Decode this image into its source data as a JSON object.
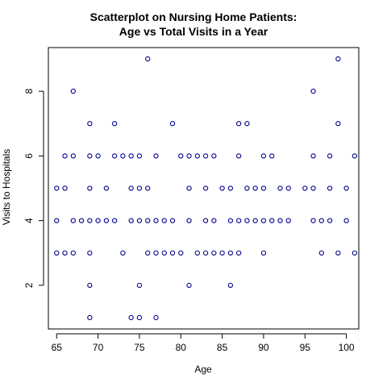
{
  "chart_data": {
    "type": "scatter",
    "title": "Scatterplot on Nursing Home Patients:",
    "subtitle": "Age vs Total Visits in a Year",
    "xlabel": "Age",
    "ylabel": "Visits to Hospitals",
    "xlim": [
      64,
      101.5
    ],
    "ylim": [
      0.65,
      9.35
    ],
    "xticks": [
      65,
      70,
      75,
      80,
      85,
      90,
      95,
      100
    ],
    "yticks": [
      2,
      4,
      6,
      8
    ],
    "grid": false,
    "marker_color": "#00008b",
    "axis_color": "#000000",
    "points": [
      {
        "x": 65,
        "y": 5
      },
      {
        "x": 65,
        "y": 4
      },
      {
        "x": 65,
        "y": 3
      },
      {
        "x": 66,
        "y": 6
      },
      {
        "x": 66,
        "y": 5
      },
      {
        "x": 66,
        "y": 3
      },
      {
        "x": 67,
        "y": 8
      },
      {
        "x": 67,
        "y": 6
      },
      {
        "x": 67,
        "y": 4
      },
      {
        "x": 67,
        "y": 3
      },
      {
        "x": 68,
        "y": 4
      },
      {
        "x": 69,
        "y": 7
      },
      {
        "x": 69,
        "y": 6
      },
      {
        "x": 69,
        "y": 5
      },
      {
        "x": 69,
        "y": 4
      },
      {
        "x": 69,
        "y": 3
      },
      {
        "x": 69,
        "y": 2
      },
      {
        "x": 69,
        "y": 1
      },
      {
        "x": 70,
        "y": 6
      },
      {
        "x": 70,
        "y": 4
      },
      {
        "x": 71,
        "y": 5
      },
      {
        "x": 71,
        "y": 4
      },
      {
        "x": 72,
        "y": 7
      },
      {
        "x": 72,
        "y": 6
      },
      {
        "x": 72,
        "y": 4
      },
      {
        "x": 73,
        "y": 6
      },
      {
        "x": 73,
        "y": 3
      },
      {
        "x": 74,
        "y": 6
      },
      {
        "x": 74,
        "y": 5
      },
      {
        "x": 74,
        "y": 4
      },
      {
        "x": 74,
        "y": 1
      },
      {
        "x": 75,
        "y": 6
      },
      {
        "x": 75,
        "y": 5
      },
      {
        "x": 75,
        "y": 4
      },
      {
        "x": 75,
        "y": 2
      },
      {
        "x": 75,
        "y": 1
      },
      {
        "x": 76,
        "y": 9
      },
      {
        "x": 76,
        "y": 5
      },
      {
        "x": 76,
        "y": 4
      },
      {
        "x": 76,
        "y": 3
      },
      {
        "x": 77,
        "y": 6
      },
      {
        "x": 77,
        "y": 4
      },
      {
        "x": 77,
        "y": 3
      },
      {
        "x": 77,
        "y": 1
      },
      {
        "x": 78,
        "y": 4
      },
      {
        "x": 78,
        "y": 3
      },
      {
        "x": 79,
        "y": 7
      },
      {
        "x": 79,
        "y": 4
      },
      {
        "x": 79,
        "y": 3
      },
      {
        "x": 80,
        "y": 6
      },
      {
        "x": 80,
        "y": 3
      },
      {
        "x": 81,
        "y": 6
      },
      {
        "x": 81,
        "y": 5
      },
      {
        "x": 81,
        "y": 4
      },
      {
        "x": 81,
        "y": 2
      },
      {
        "x": 82,
        "y": 6
      },
      {
        "x": 82,
        "y": 3
      },
      {
        "x": 83,
        "y": 6
      },
      {
        "x": 83,
        "y": 5
      },
      {
        "x": 83,
        "y": 4
      },
      {
        "x": 83,
        "y": 3
      },
      {
        "x": 84,
        "y": 6
      },
      {
        "x": 84,
        "y": 4
      },
      {
        "x": 84,
        "y": 3
      },
      {
        "x": 85,
        "y": 5
      },
      {
        "x": 85,
        "y": 3
      },
      {
        "x": 86,
        "y": 5
      },
      {
        "x": 86,
        "y": 4
      },
      {
        "x": 86,
        "y": 3
      },
      {
        "x": 86,
        "y": 2
      },
      {
        "x": 87,
        "y": 7
      },
      {
        "x": 87,
        "y": 6
      },
      {
        "x": 87,
        "y": 4
      },
      {
        "x": 87,
        "y": 3
      },
      {
        "x": 88,
        "y": 7
      },
      {
        "x": 88,
        "y": 5
      },
      {
        "x": 88,
        "y": 4
      },
      {
        "x": 89,
        "y": 5
      },
      {
        "x": 89,
        "y": 4
      },
      {
        "x": 90,
        "y": 6
      },
      {
        "x": 90,
        "y": 5
      },
      {
        "x": 90,
        "y": 4
      },
      {
        "x": 90,
        "y": 3
      },
      {
        "x": 91,
        "y": 6
      },
      {
        "x": 91,
        "y": 4
      },
      {
        "x": 92,
        "y": 5
      },
      {
        "x": 92,
        "y": 4
      },
      {
        "x": 93,
        "y": 5
      },
      {
        "x": 93,
        "y": 4
      },
      {
        "x": 95,
        "y": 5
      },
      {
        "x": 96,
        "y": 8
      },
      {
        "x": 96,
        "y": 6
      },
      {
        "x": 96,
        "y": 5
      },
      {
        "x": 96,
        "y": 4
      },
      {
        "x": 97,
        "y": 4
      },
      {
        "x": 97,
        "y": 3
      },
      {
        "x": 98,
        "y": 6
      },
      {
        "x": 98,
        "y": 5
      },
      {
        "x": 98,
        "y": 4
      },
      {
        "x": 99,
        "y": 9
      },
      {
        "x": 99,
        "y": 7
      },
      {
        "x": 99,
        "y": 3
      },
      {
        "x": 100,
        "y": 5
      },
      {
        "x": 100,
        "y": 4
      },
      {
        "x": 101,
        "y": 6
      },
      {
        "x": 101,
        "y": 3
      }
    ]
  }
}
